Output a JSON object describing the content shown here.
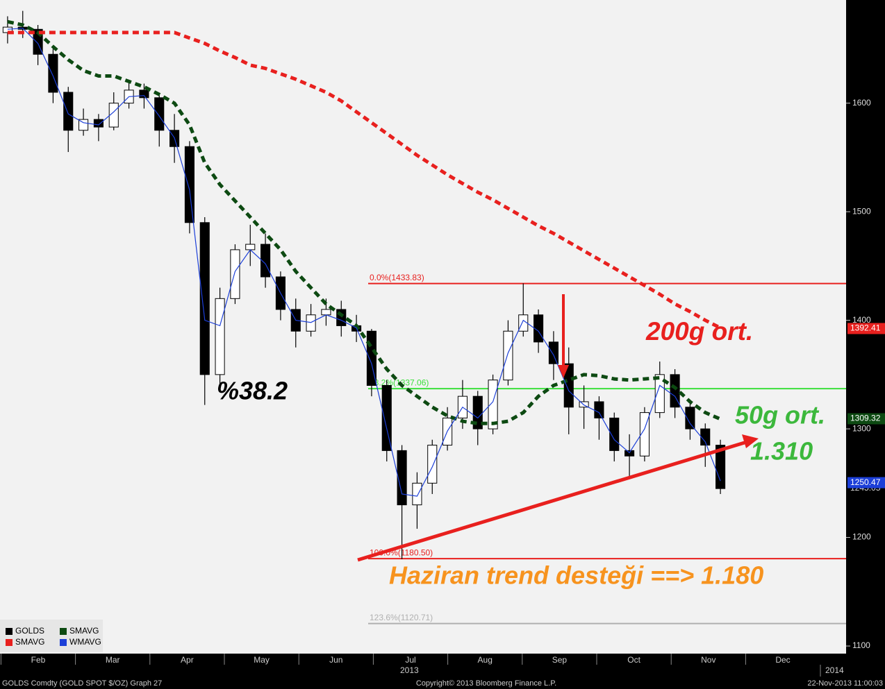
{
  "chart_data": {
    "type": "candlestick",
    "ylim": [
      1093,
      1695
    ],
    "yticks": [
      1100,
      1200,
      1300,
      1400,
      1500,
      1600
    ],
    "months": [
      "Feb",
      "Mar",
      "Apr",
      "May",
      "Jun",
      "Jul",
      "Aug",
      "Sep",
      "Oct",
      "Nov",
      "Dec"
    ],
    "years": [
      "2013",
      "2014"
    ],
    "candles": {
      "name": "GOLDS",
      "last_value": 1245.05,
      "open": [
        1665,
        1670,
        1668,
        1645,
        1610,
        1575,
        1585,
        1578,
        1600,
        1612,
        1605,
        1575,
        1560,
        1490,
        1350,
        1420,
        1465,
        1470,
        1440,
        1410,
        1390,
        1405,
        1410,
        1395,
        1390,
        1340,
        1280,
        1230,
        1250,
        1285,
        1310,
        1330,
        1300,
        1345,
        1390,
        1405,
        1380,
        1360,
        1320,
        1325,
        1310,
        1280,
        1275,
        1315,
        1350,
        1320,
        1300,
        1285
      ],
      "high": [
        1680,
        1685,
        1672,
        1650,
        1615,
        1595,
        1590,
        1610,
        1620,
        1618,
        1608,
        1590,
        1565,
        1495,
        1430,
        1470,
        1488,
        1480,
        1445,
        1420,
        1415,
        1420,
        1418,
        1405,
        1392,
        1345,
        1285,
        1260,
        1290,
        1320,
        1345,
        1335,
        1350,
        1400,
        1434,
        1410,
        1390,
        1375,
        1340,
        1330,
        1315,
        1295,
        1320,
        1362,
        1355,
        1325,
        1305,
        1290
      ],
      "low": [
        1655,
        1660,
        1635,
        1600,
        1555,
        1570,
        1565,
        1575,
        1595,
        1595,
        1560,
        1545,
        1480,
        1322,
        1340,
        1415,
        1450,
        1430,
        1400,
        1375,
        1385,
        1395,
        1385,
        1380,
        1330,
        1270,
        1180,
        1208,
        1240,
        1280,
        1300,
        1285,
        1295,
        1340,
        1385,
        1370,
        1345,
        1295,
        1300,
        1290,
        1270,
        1255,
        1270,
        1310,
        1310,
        1290,
        1265,
        1240
      ],
      "close": [
        1670,
        1668,
        1645,
        1610,
        1575,
        1585,
        1578,
        1600,
        1612,
        1605,
        1575,
        1560,
        1490,
        1350,
        1420,
        1465,
        1470,
        1440,
        1410,
        1390,
        1405,
        1410,
        1395,
        1390,
        1340,
        1280,
        1230,
        1250,
        1285,
        1310,
        1330,
        1300,
        1345,
        1390,
        1405,
        1380,
        1360,
        1320,
        1325,
        1310,
        1280,
        1275,
        1315,
        1350,
        1320,
        1300,
        1285,
        1245
      ]
    },
    "series": [
      {
        "name": "SMAVG",
        "color": "#0d4a12",
        "dash": true,
        "last_value": 1309.32,
        "values": [
          1675,
          1672,
          1665,
          1652,
          1640,
          1630,
          1625,
          1625,
          1620,
          1615,
          1608,
          1600,
          1580,
          1545,
          1525,
          1510,
          1495,
          1480,
          1465,
          1445,
          1430,
          1415,
          1405,
          1395,
          1375,
          1355,
          1340,
          1330,
          1320,
          1312,
          1307,
          1305,
          1305,
          1307,
          1315,
          1330,
          1340,
          1345,
          1350,
          1349,
          1346,
          1345,
          1346,
          1347,
          1338,
          1325,
          1315,
          1309
        ]
      },
      {
        "name": "SMAVG",
        "color": "#e8201e",
        "dash": true,
        "last_value": 1392.41,
        "values": [
          1665,
          1665,
          1665,
          1665,
          1665,
          1665,
          1665,
          1665,
          1665,
          1665,
          1665,
          1665,
          1660,
          1655,
          1648,
          1642,
          1635,
          1632,
          1627,
          1622,
          1616,
          1610,
          1602,
          1592,
          1582,
          1572,
          1562,
          1552,
          1543,
          1534,
          1526,
          1518,
          1511,
          1503,
          1495,
          1487,
          1480,
          1472,
          1464,
          1456,
          1448,
          1440,
          1432,
          1424,
          1415,
          1408,
          1400,
          1393
        ]
      },
      {
        "name": "WMAVG",
        "color": "#1c3fd8",
        "dash": false,
        "last_value": 1250.47,
        "values": [
          1668,
          1669,
          1655,
          1625,
          1590,
          1582,
          1580,
          1592,
          1606,
          1607,
          1588,
          1568,
          1520,
          1400,
          1395,
          1445,
          1465,
          1452,
          1425,
          1400,
          1398,
          1405,
          1400,
          1393,
          1360,
          1300,
          1240,
          1238,
          1265,
          1298,
          1320,
          1310,
          1325,
          1370,
          1400,
          1390,
          1368,
          1335,
          1322,
          1315,
          1290,
          1278,
          1300,
          1340,
          1330,
          1305,
          1288,
          1252
        ]
      }
    ],
    "fib_levels": [
      {
        "label": "0.0%(1433.83)",
        "value": 1433.83,
        "color": "#e8201e"
      },
      {
        "label": "38.2%(1337.06)",
        "value": 1337.06,
        "color": "#3ce03c"
      },
      {
        "label": "100.0%(1180.50)",
        "value": 1180.5,
        "color": "#e8201e"
      },
      {
        "label": "123.6%(1120.71)",
        "value": 1120.71,
        "color": "#b0b0b0"
      }
    ],
    "annotations": [
      "%38.2",
      "200g ort.",
      "50g ort.",
      "1.310",
      "Haziran trend desteği ==> 1.180"
    ],
    "footer": {
      "left": "GOLDS Comdty (GOLD SPOT $/OZ) Graph 27",
      "center": "Copyright© 2013 Bloomberg Finance L.P.",
      "right": "22-Nov-2013 11:00:03"
    }
  }
}
